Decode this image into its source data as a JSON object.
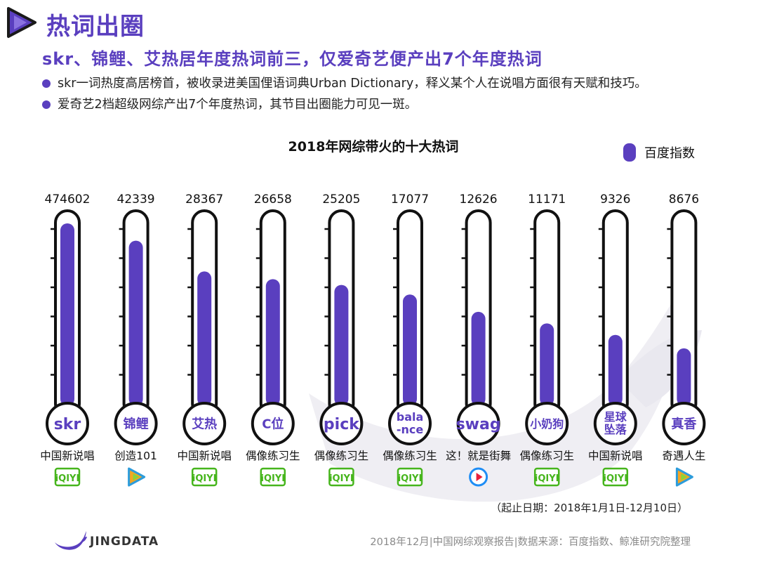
{
  "header": {
    "title": "热词出圈",
    "subtitle": "skr、锦鲤、艾热居年度热词前三，仅爱奇艺便产出7个年度热词",
    "bullets": [
      "skr一词热度高居榜首，被收录进美国俚语词典Urban Dictionary，释义某个人在说唱方面很有天赋和技巧。",
      "爱奇艺2档超级网综产出7个年度热词，其节目出圈能力可见一斑。"
    ]
  },
  "colors": {
    "accent": "#5a3fbf",
    "iqiyi": "#46b51c",
    "tencent_blue": "#2d9cdb",
    "tencent_orange": "#f5a623",
    "youku_red": "#e8203c",
    "youku_blue": "#1e8df5"
  },
  "chart_data": {
    "type": "bar",
    "title": "2018年网综带火的十大热词",
    "legend": [
      "百度指数"
    ],
    "legend_position": "top-right",
    "scale": "non-linear",
    "categories": [
      "skr",
      "锦鲤",
      "艾热",
      "C位",
      "pick",
      "bala\n-nce",
      "swag",
      "小奶狗",
      "星球\n坠落",
      "真香"
    ],
    "values": [
      474602,
      42339,
      28367,
      26658,
      25205,
      17077,
      12626,
      11171,
      9326,
      8676
    ],
    "display_values": [
      "474602",
      "42339",
      "28367",
      "26658",
      "25205",
      "17077",
      "12626",
      "11171",
      "9326",
      "8676"
    ],
    "fill_fraction": [
      0.95,
      0.86,
      0.7,
      0.66,
      0.63,
      0.58,
      0.49,
      0.43,
      0.37,
      0.3
    ],
    "shows": [
      "中国新说唱",
      "创造101",
      "中国新说唱",
      "偶像练习生",
      "偶像练习生",
      "偶像练习生",
      "这！就是街舞",
      "偶像练习生",
      "中国新说唱",
      "奇遇人生"
    ],
    "platforms": [
      "iqiyi",
      "tencent",
      "iqiyi",
      "iqiyi",
      "iqiyi",
      "iqiyi",
      "youku",
      "iqiyi",
      "iqiyi",
      "tencent"
    ],
    "platform_labels": {
      "iqiyi": "iQIYI"
    }
  },
  "footer": {
    "date_range": "（起止日期：2018年1月1日-12月10日）",
    "brand": "JINGDATA",
    "source": "2018年12月|中国网综观察报告|数据来源：百度指数、鲸准研究院整理"
  }
}
